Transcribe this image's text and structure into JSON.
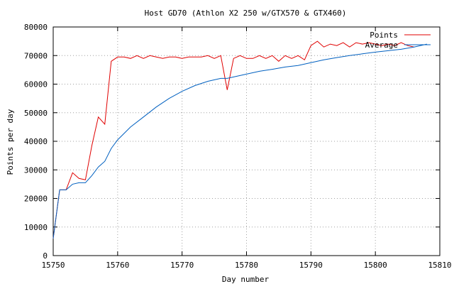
{
  "chart_data": {
    "type": "line",
    "title": "Host GD70 (Athlon X2 250 w/GTX570 & GTX460)",
    "xlabel": "Day number",
    "ylabel": "Points per day",
    "xlim": [
      15750,
      15810
    ],
    "ylim": [
      0,
      80000
    ],
    "xticks": [
      15750,
      15760,
      15770,
      15780,
      15790,
      15800,
      15810
    ],
    "yticks": [
      0,
      10000,
      20000,
      30000,
      40000,
      50000,
      60000,
      70000,
      80000
    ],
    "grid": true,
    "legend_position": "top-right",
    "series": [
      {
        "name": "Points",
        "color": "#e00000",
        "x": [
          15750,
          15751,
          15752,
          15753,
          15754,
          15755,
          15756,
          15757,
          15758,
          15759,
          15760,
          15761,
          15762,
          15763,
          15764,
          15765,
          15766,
          15767,
          15768,
          15769,
          15770,
          15771,
          15772,
          15773,
          15774,
          15775,
          15776,
          15777,
          15778,
          15779,
          15780,
          15781,
          15782,
          15783,
          15784,
          15785,
          15786,
          15787,
          15788,
          15789,
          15790,
          15791,
          15792,
          15793,
          15794,
          15795,
          15796,
          15797,
          15798,
          15799,
          15800,
          15801,
          15802,
          15803,
          15804,
          15805,
          15806
        ],
        "y": [
          6000,
          23000,
          23000,
          29000,
          27000,
          26500,
          38500,
          48500,
          46000,
          68000,
          69500,
          69500,
          69000,
          70000,
          69000,
          70000,
          69500,
          69000,
          69500,
          69500,
          69000,
          69500,
          69500,
          69500,
          70000,
          69000,
          70000,
          58000,
          69000,
          70000,
          69000,
          69000,
          70000,
          69000,
          70000,
          68000,
          70000,
          69000,
          70000,
          68500,
          73500,
          75000,
          73000,
          74000,
          73500,
          74500,
          73000,
          74500,
          74000,
          74500,
          74000,
          73500,
          74000,
          73500,
          74500,
          73500,
          73000
        ]
      },
      {
        "name": "Average",
        "color": "#0060c0",
        "x": [
          15750,
          15751,
          15752,
          15753,
          15754,
          15755,
          15756,
          15757,
          15758,
          15759,
          15760,
          15762,
          15764,
          15766,
          15768,
          15770,
          15772,
          15774,
          15776,
          15777,
          15778,
          15780,
          15782,
          15784,
          15786,
          15788,
          15790,
          15792,
          15794,
          15796,
          15798,
          15800,
          15802,
          15804,
          15806,
          15808
        ],
        "y": [
          6000,
          23000,
          23000,
          25000,
          25500,
          25500,
          28000,
          31000,
          33000,
          37500,
          40500,
          45000,
          48500,
          52000,
          55000,
          57500,
          59500,
          61000,
          62000,
          62000,
          62500,
          63500,
          64500,
          65200,
          66000,
          66500,
          67500,
          68500,
          69300,
          70000,
          70600,
          71200,
          71700,
          72200,
          73000,
          74000
        ]
      }
    ]
  }
}
